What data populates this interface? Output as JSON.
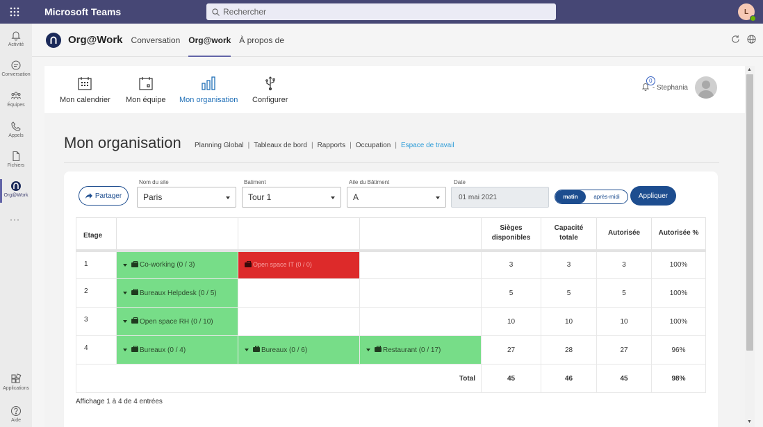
{
  "teams": {
    "app_title": "Microsoft Teams",
    "search_placeholder": "Rechercher",
    "user_initial": "L"
  },
  "rail": [
    {
      "label": "Activité",
      "icon": "bell-icon"
    },
    {
      "label": "Conversation",
      "icon": "chat-icon"
    },
    {
      "label": "Équipes",
      "icon": "teams-icon"
    },
    {
      "label": "Appels",
      "icon": "phone-icon"
    },
    {
      "label": "Fichiers",
      "icon": "file-icon"
    },
    {
      "label": "Org@Work",
      "icon": "orgwork-icon",
      "active": true
    },
    {
      "label": "Applications",
      "icon": "apps-icon"
    },
    {
      "label": "Aide",
      "icon": "help-icon"
    }
  ],
  "app_header": {
    "name": "Org@Work",
    "tabs": [
      "Conversation",
      "Org@work",
      "À propos de"
    ],
    "active_tab": "Org@work"
  },
  "nav": {
    "items": [
      {
        "label": "Mon calendrier",
        "icon": "calendar-icon"
      },
      {
        "label": "Mon équipe",
        "icon": "team-calendar-icon"
      },
      {
        "label": "Mon organisation",
        "icon": "bar-chart-icon",
        "active": true
      },
      {
        "label": "Configurer",
        "icon": "usb-icon"
      }
    ],
    "notifications": "0",
    "user_name": "- Stephania"
  },
  "page": {
    "title": "Mon organisation",
    "links": [
      "Planning Global",
      "Tableaux de bord",
      "Rapports",
      "Occupation",
      "Espace de travail"
    ],
    "active_link": "Espace de travail"
  },
  "filters": {
    "share_label": "Partager",
    "site_label": "Nom du site",
    "site_value": "Paris",
    "building_label": "Batiment",
    "building_value": "Tour 1",
    "wing_label": "Aile du Bâtiment",
    "wing_value": "A",
    "date_label": "Date",
    "date_value": "01 mai 2021",
    "morning": "matin",
    "afternoon": "après-midi",
    "apply_label": "Appliquer"
  },
  "table": {
    "headers": {
      "etage": "Etage",
      "sieges_1": "Sièges",
      "sieges_2": "disponibles",
      "capacite_1": "Capacité",
      "capacite_2": "totale",
      "autorisee": "Autorisée",
      "autorisee_pct": "Autorisée %"
    },
    "rows": [
      {
        "etage": "1",
        "rooms": [
          "Co-working (0 / 3)",
          "Open space IT (0 / 0)",
          ""
        ],
        "sieges": "3",
        "capacite": "3",
        "autorisee": "3",
        "pct": "100%"
      },
      {
        "etage": "2",
        "rooms": [
          "Bureaux Helpdesk (0 / 5)",
          "",
          ""
        ],
        "sieges": "5",
        "capacite": "5",
        "autorisee": "5",
        "pct": "100%"
      },
      {
        "etage": "3",
        "rooms": [
          "Open space RH (0 / 10)",
          "",
          ""
        ],
        "sieges": "10",
        "capacite": "10",
        "autorisee": "10",
        "pct": "100%"
      },
      {
        "etage": "4",
        "rooms": [
          "Bureaux (0 / 4)",
          "Bureaux (0 / 6)",
          "Restaurant (0 / 17)"
        ],
        "sieges": "27",
        "capacite": "28",
        "autorisee": "27",
        "pct": "96%"
      }
    ],
    "total": {
      "label": "Total",
      "sieges": "45",
      "capacite": "46",
      "autorisee": "45",
      "pct": "98%"
    },
    "info": "Affichage 1 à 4 de 4 entrées"
  },
  "colors": {
    "teams_bar": "#464775",
    "available": "#77dd88",
    "full": "#dd2a2a",
    "primary": "#1d4d8f"
  }
}
